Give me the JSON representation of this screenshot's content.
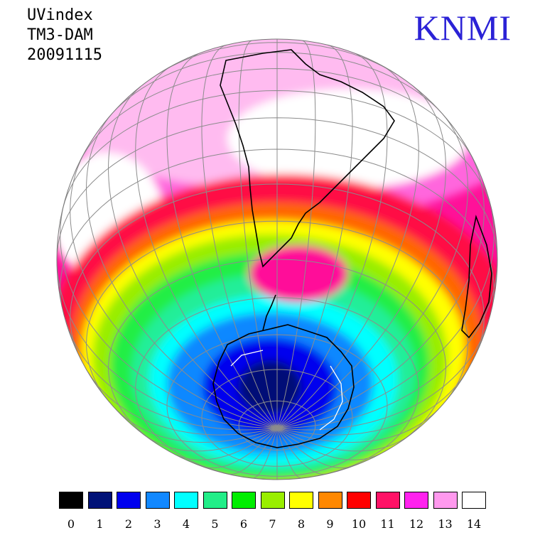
{
  "header": {
    "lines": [
      "UVindex",
      "TM3-DAM",
      "20091115"
    ]
  },
  "logo": {
    "text": "KNMI",
    "color": "#2b22d6"
  },
  "map": {
    "projection": "orthographic",
    "center": "southern-hemisphere-south-america",
    "colorbands": [
      "#ffffff",
      "#ff99ee",
      "#ff33ee",
      "#ff1199",
      "#ff0033",
      "#ff8800",
      "#ffff00",
      "#99ee00",
      "#00ee00",
      "#22ee88",
      "#00ffff",
      "#1188ff",
      "#0000ee",
      "#000088"
    ]
  },
  "legend": {
    "items": [
      {
        "label": "0",
        "color": "#000000"
      },
      {
        "label": "1",
        "color": "#001177"
      },
      {
        "label": "2",
        "color": "#0000ee"
      },
      {
        "label": "3",
        "color": "#1188ff"
      },
      {
        "label": "4",
        "color": "#00ffff"
      },
      {
        "label": "5",
        "color": "#22ee88"
      },
      {
        "label": "6",
        "color": "#00ee00"
      },
      {
        "label": "7",
        "color": "#99ee00"
      },
      {
        "label": "8",
        "color": "#ffff00"
      },
      {
        "label": "9",
        "color": "#ff8800"
      },
      {
        "label": "10",
        "color": "#ff0000"
      },
      {
        "label": "11",
        "color": "#ff1166"
      },
      {
        "label": "12",
        "color": "#ff22ee"
      },
      {
        "label": "13",
        "color": "#ff99ee"
      },
      {
        "label": "14",
        "color": "#ffffff"
      }
    ]
  }
}
